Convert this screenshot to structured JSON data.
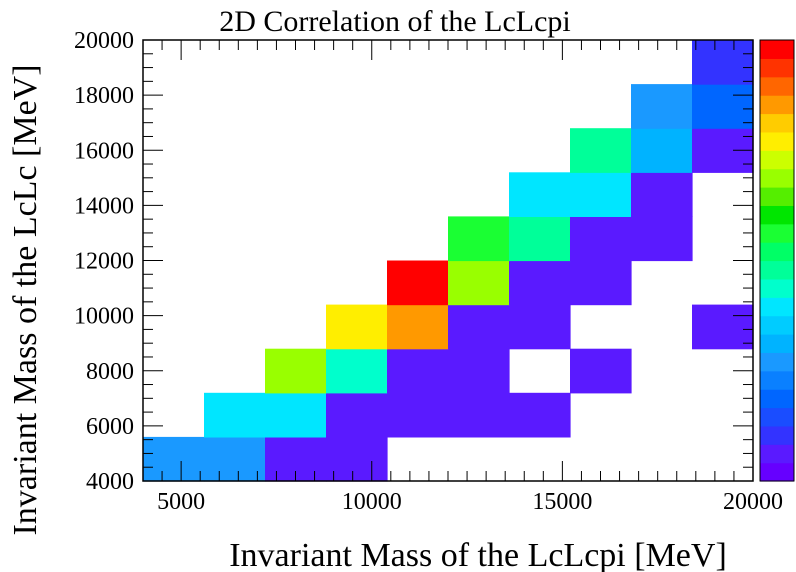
{
  "chart_data": {
    "type": "heatmap",
    "title": "2D Correlation of the LcLcpi",
    "xlabel": "Invariant Mass of the LcLcpi [MeV]",
    "ylabel": "Invariant Mass of the LcLc [MeV]",
    "xlim": [
      4000,
      20000
    ],
    "ylim": [
      4000,
      20000
    ],
    "x_bin_edges": [
      4000,
      5600,
      7200,
      8800,
      10400,
      12000,
      13600,
      15200,
      16800,
      18400,
      20000
    ],
    "y_bin_edges": [
      4000,
      5600,
      7200,
      8800,
      10400,
      12000,
      13600,
      15200,
      16800,
      18400,
      20000
    ],
    "x_ticks": [
      5000,
      10000,
      15000,
      20000
    ],
    "y_ticks": [
      4000,
      6000,
      8000,
      10000,
      12000,
      14000,
      16000,
      18000,
      20000
    ],
    "x_tick_labels": [
      "5000",
      "10000",
      "15000",
      "20000"
    ],
    "y_tick_labels": [
      "4000",
      "6000",
      "8000",
      "10000",
      "12000",
      "14000",
      "16000",
      "18000",
      "20000"
    ],
    "color_scale": "rainbow",
    "max_level": 19,
    "palette": [
      "#6600ff",
      "#5a1aff",
      "#3333ff",
      "#1a4dff",
      "#0066ff",
      "#0a80ff",
      "#1a99ff",
      "#00b3ff",
      "#00ccff",
      "#00e6ff",
      "#00ffcc",
      "#00ff99",
      "#00ff66",
      "#1aff33",
      "#00e600",
      "#55ee00",
      "#99ff00",
      "#ccff00",
      "#ffee00",
      "#ffcc00",
      "#ff9900",
      "#ff6600",
      "#ff3300",
      "#ff0000"
    ],
    "cells": [
      {
        "xi": 0,
        "yi": 0,
        "v": 6
      },
      {
        "xi": 1,
        "yi": 0,
        "v": 6
      },
      {
        "xi": 2,
        "yi": 0,
        "v": 1
      },
      {
        "xi": 3,
        "yi": 0,
        "v": 1
      },
      {
        "xi": 1,
        "yi": 1,
        "v": 9
      },
      {
        "xi": 2,
        "yi": 1,
        "v": 9
      },
      {
        "xi": 3,
        "yi": 1,
        "v": 1
      },
      {
        "xi": 4,
        "yi": 1,
        "v": 1
      },
      {
        "xi": 5,
        "yi": 1,
        "v": 1
      },
      {
        "xi": 6,
        "yi": 1,
        "v": 1
      },
      {
        "xi": 2,
        "yi": 2,
        "v": 16
      },
      {
        "xi": 3,
        "yi": 2,
        "v": 10
      },
      {
        "xi": 4,
        "yi": 2,
        "v": 1
      },
      {
        "xi": 5,
        "yi": 2,
        "v": 1
      },
      {
        "xi": 7,
        "yi": 2,
        "v": 1
      },
      {
        "xi": 3,
        "yi": 3,
        "v": 18
      },
      {
        "xi": 4,
        "yi": 3,
        "v": 20
      },
      {
        "xi": 5,
        "yi": 3,
        "v": 1
      },
      {
        "xi": 6,
        "yi": 3,
        "v": 1
      },
      {
        "xi": 9,
        "yi": 3,
        "v": 1
      },
      {
        "xi": 4,
        "yi": 4,
        "v": 23
      },
      {
        "xi": 5,
        "yi": 4,
        "v": 16
      },
      {
        "xi": 6,
        "yi": 4,
        "v": 1
      },
      {
        "xi": 7,
        "yi": 4,
        "v": 1
      },
      {
        "xi": 5,
        "yi": 5,
        "v": 13
      },
      {
        "xi": 6,
        "yi": 5,
        "v": 11
      },
      {
        "xi": 7,
        "yi": 5,
        "v": 1
      },
      {
        "xi": 8,
        "yi": 5,
        "v": 1
      },
      {
        "xi": 6,
        "yi": 6,
        "v": 9
      },
      {
        "xi": 7,
        "yi": 6,
        "v": 9
      },
      {
        "xi": 8,
        "yi": 6,
        "v": 1
      },
      {
        "xi": 7,
        "yi": 7,
        "v": 11
      },
      {
        "xi": 8,
        "yi": 7,
        "v": 7
      },
      {
        "xi": 9,
        "yi": 7,
        "v": 1
      },
      {
        "xi": 8,
        "yi": 8,
        "v": 6
      },
      {
        "xi": 9,
        "yi": 8,
        "v": 4
      },
      {
        "xi": 9,
        "yi": 9,
        "v": 2
      }
    ]
  }
}
